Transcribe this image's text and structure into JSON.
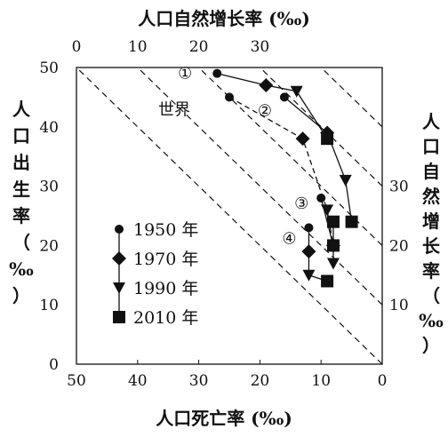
{
  "chart_data": {
    "type": "scatter",
    "x_axis": {
      "label": "人口死亡率 (‰)",
      "min": 0,
      "max": 50,
      "reversed": true,
      "ticks": [
        50,
        40,
        30,
        20,
        10,
        0
      ],
      "tick_labels": [
        "50",
        "40",
        "30",
        "20",
        "10",
        "0"
      ]
    },
    "y_axis": {
      "label_chars": [
        "人",
        "口",
        "出",
        "生",
        "率",
        "（",
        "‰",
        "）"
      ],
      "min": 0,
      "max": 50,
      "ticks": [
        0,
        10,
        20,
        30,
        40,
        50
      ],
      "tick_labels": [
        "0",
        "10",
        "20",
        "30",
        "40",
        "50"
      ]
    },
    "top_axis": {
      "label": "人口自然增长率 (‰)",
      "ticks": [
        0,
        10,
        20,
        30
      ],
      "tick_labels": [
        "0",
        "10",
        "20",
        "30"
      ]
    },
    "right_axis": {
      "label_chars": [
        "人",
        "口",
        "自",
        "然",
        "增",
        "长",
        "率",
        "（",
        "‰",
        "）"
      ],
      "ticks": [
        10,
        20,
        30
      ],
      "tick_labels": [
        "10",
        "20",
        "30"
      ]
    },
    "isolines": [
      0,
      10,
      20,
      30,
      40
    ],
    "legend": [
      {
        "marker": "circle",
        "label": "1950 年"
      },
      {
        "marker": "diamond",
        "label": "1970 年"
      },
      {
        "marker": "triangle-down",
        "label": "1990 年"
      },
      {
        "marker": "square",
        "label": "2010 年"
      }
    ],
    "series": [
      {
        "name": "①",
        "line": "solid",
        "points": [
          {
            "year": 1950,
            "death": 27,
            "birth": 49
          },
          {
            "year": 1970,
            "death": 19,
            "birth": 47
          },
          {
            "year": 1990,
            "death": 14,
            "birth": 46
          },
          {
            "year": 2010,
            "death": 9,
            "birth": 38
          }
        ]
      },
      {
        "name": "②",
        "line": "solid",
        "points": [
          {
            "year": 1950,
            "death": 16,
            "birth": 45
          },
          {
            "year": 1970,
            "death": 9,
            "birth": 39
          },
          {
            "year": 1990,
            "death": 6,
            "birth": 31
          },
          {
            "year": 2010,
            "death": 5,
            "birth": 24
          }
        ]
      },
      {
        "name": "世界",
        "line": "dashed",
        "points": [
          {
            "year": 1950,
            "death": 25,
            "birth": 45
          },
          {
            "year": 1970,
            "death": 13,
            "birth": 38
          },
          {
            "year": 1990,
            "death": 9,
            "birth": 26
          },
          {
            "year": 2010,
            "death": 8,
            "birth": 20
          }
        ]
      },
      {
        "name": "③",
        "line": "solid",
        "points": [
          {
            "year": 1950,
            "death": 10,
            "birth": 28
          },
          {
            "year": 1970,
            "death": 8,
            "birth": 20
          },
          {
            "year": 1990,
            "death": 8,
            "birth": 17
          },
          {
            "year": 2010,
            "death": 8,
            "birth": 24
          }
        ]
      },
      {
        "name": "④",
        "line": "solid",
        "points": [
          {
            "year": 1950,
            "death": 12,
            "birth": 23
          },
          {
            "year": 1970,
            "death": 12,
            "birth": 19
          },
          {
            "year": 1990,
            "death": 12,
            "birth": 15
          },
          {
            "year": 2010,
            "death": 9,
            "birth": 14
          }
        ]
      }
    ]
  }
}
